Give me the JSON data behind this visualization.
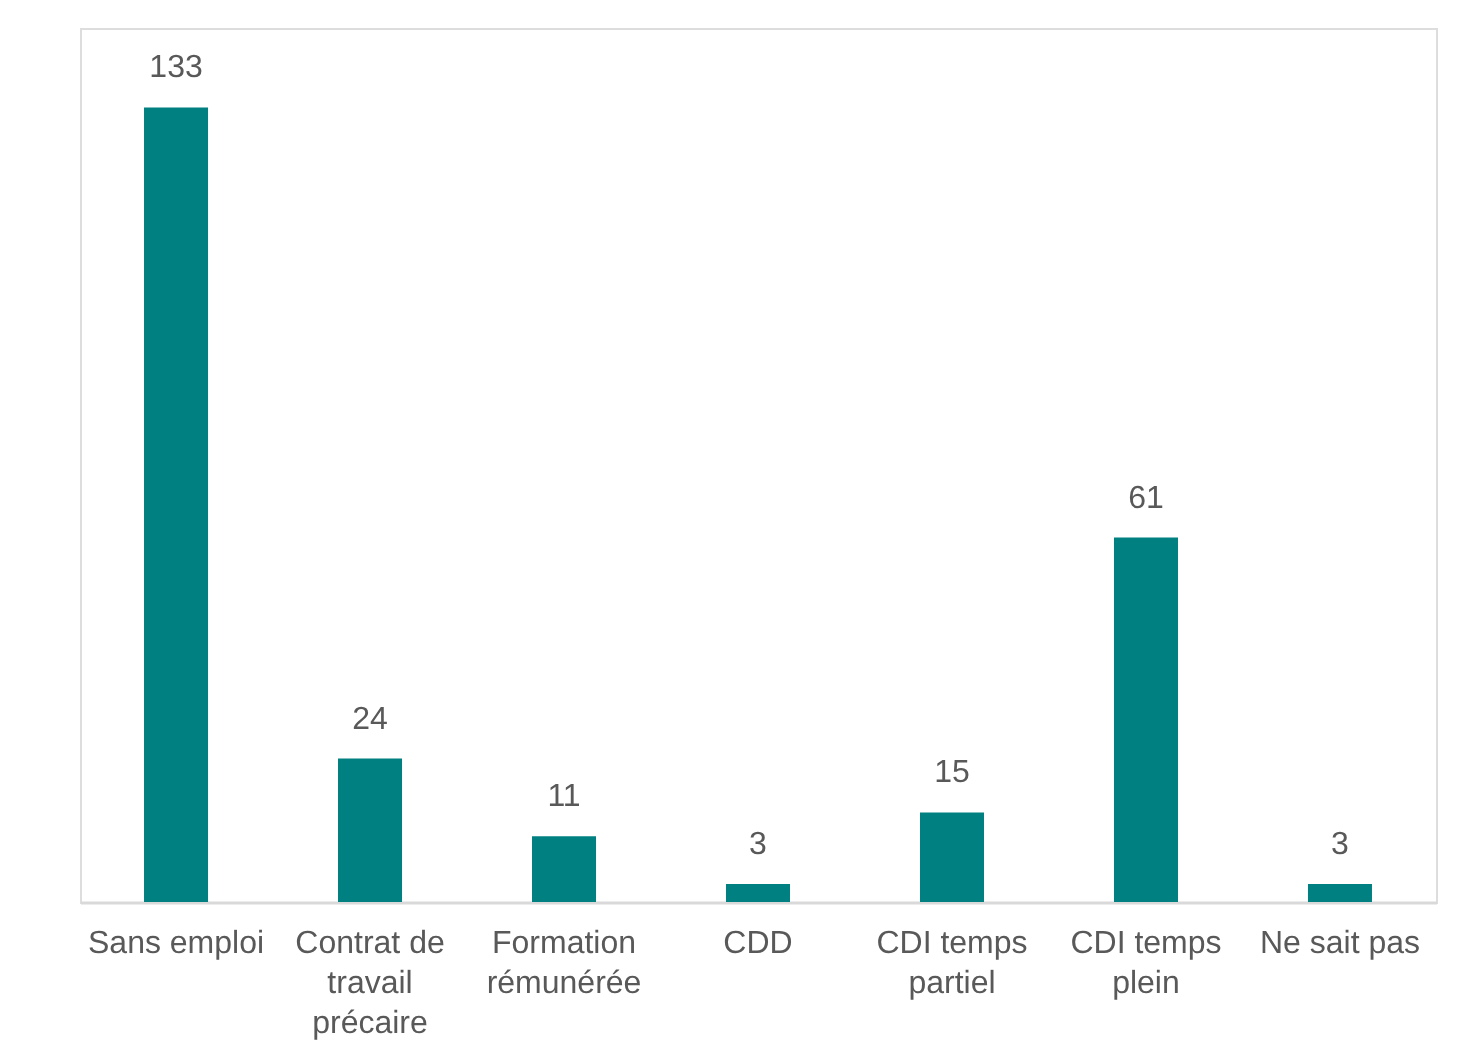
{
  "chart_data": {
    "type": "bar",
    "categories": [
      "Sans emploi",
      "Contrat de travail précaire",
      "Formation rémunérée",
      "CDD",
      "CDI temps partiel",
      "CDI temps plein",
      "Ne sait pas"
    ],
    "values": [
      133,
      24,
      11,
      3,
      15,
      61,
      3
    ],
    "color": "#008080",
    "data_labels": true,
    "tick_labels": "x"
  }
}
